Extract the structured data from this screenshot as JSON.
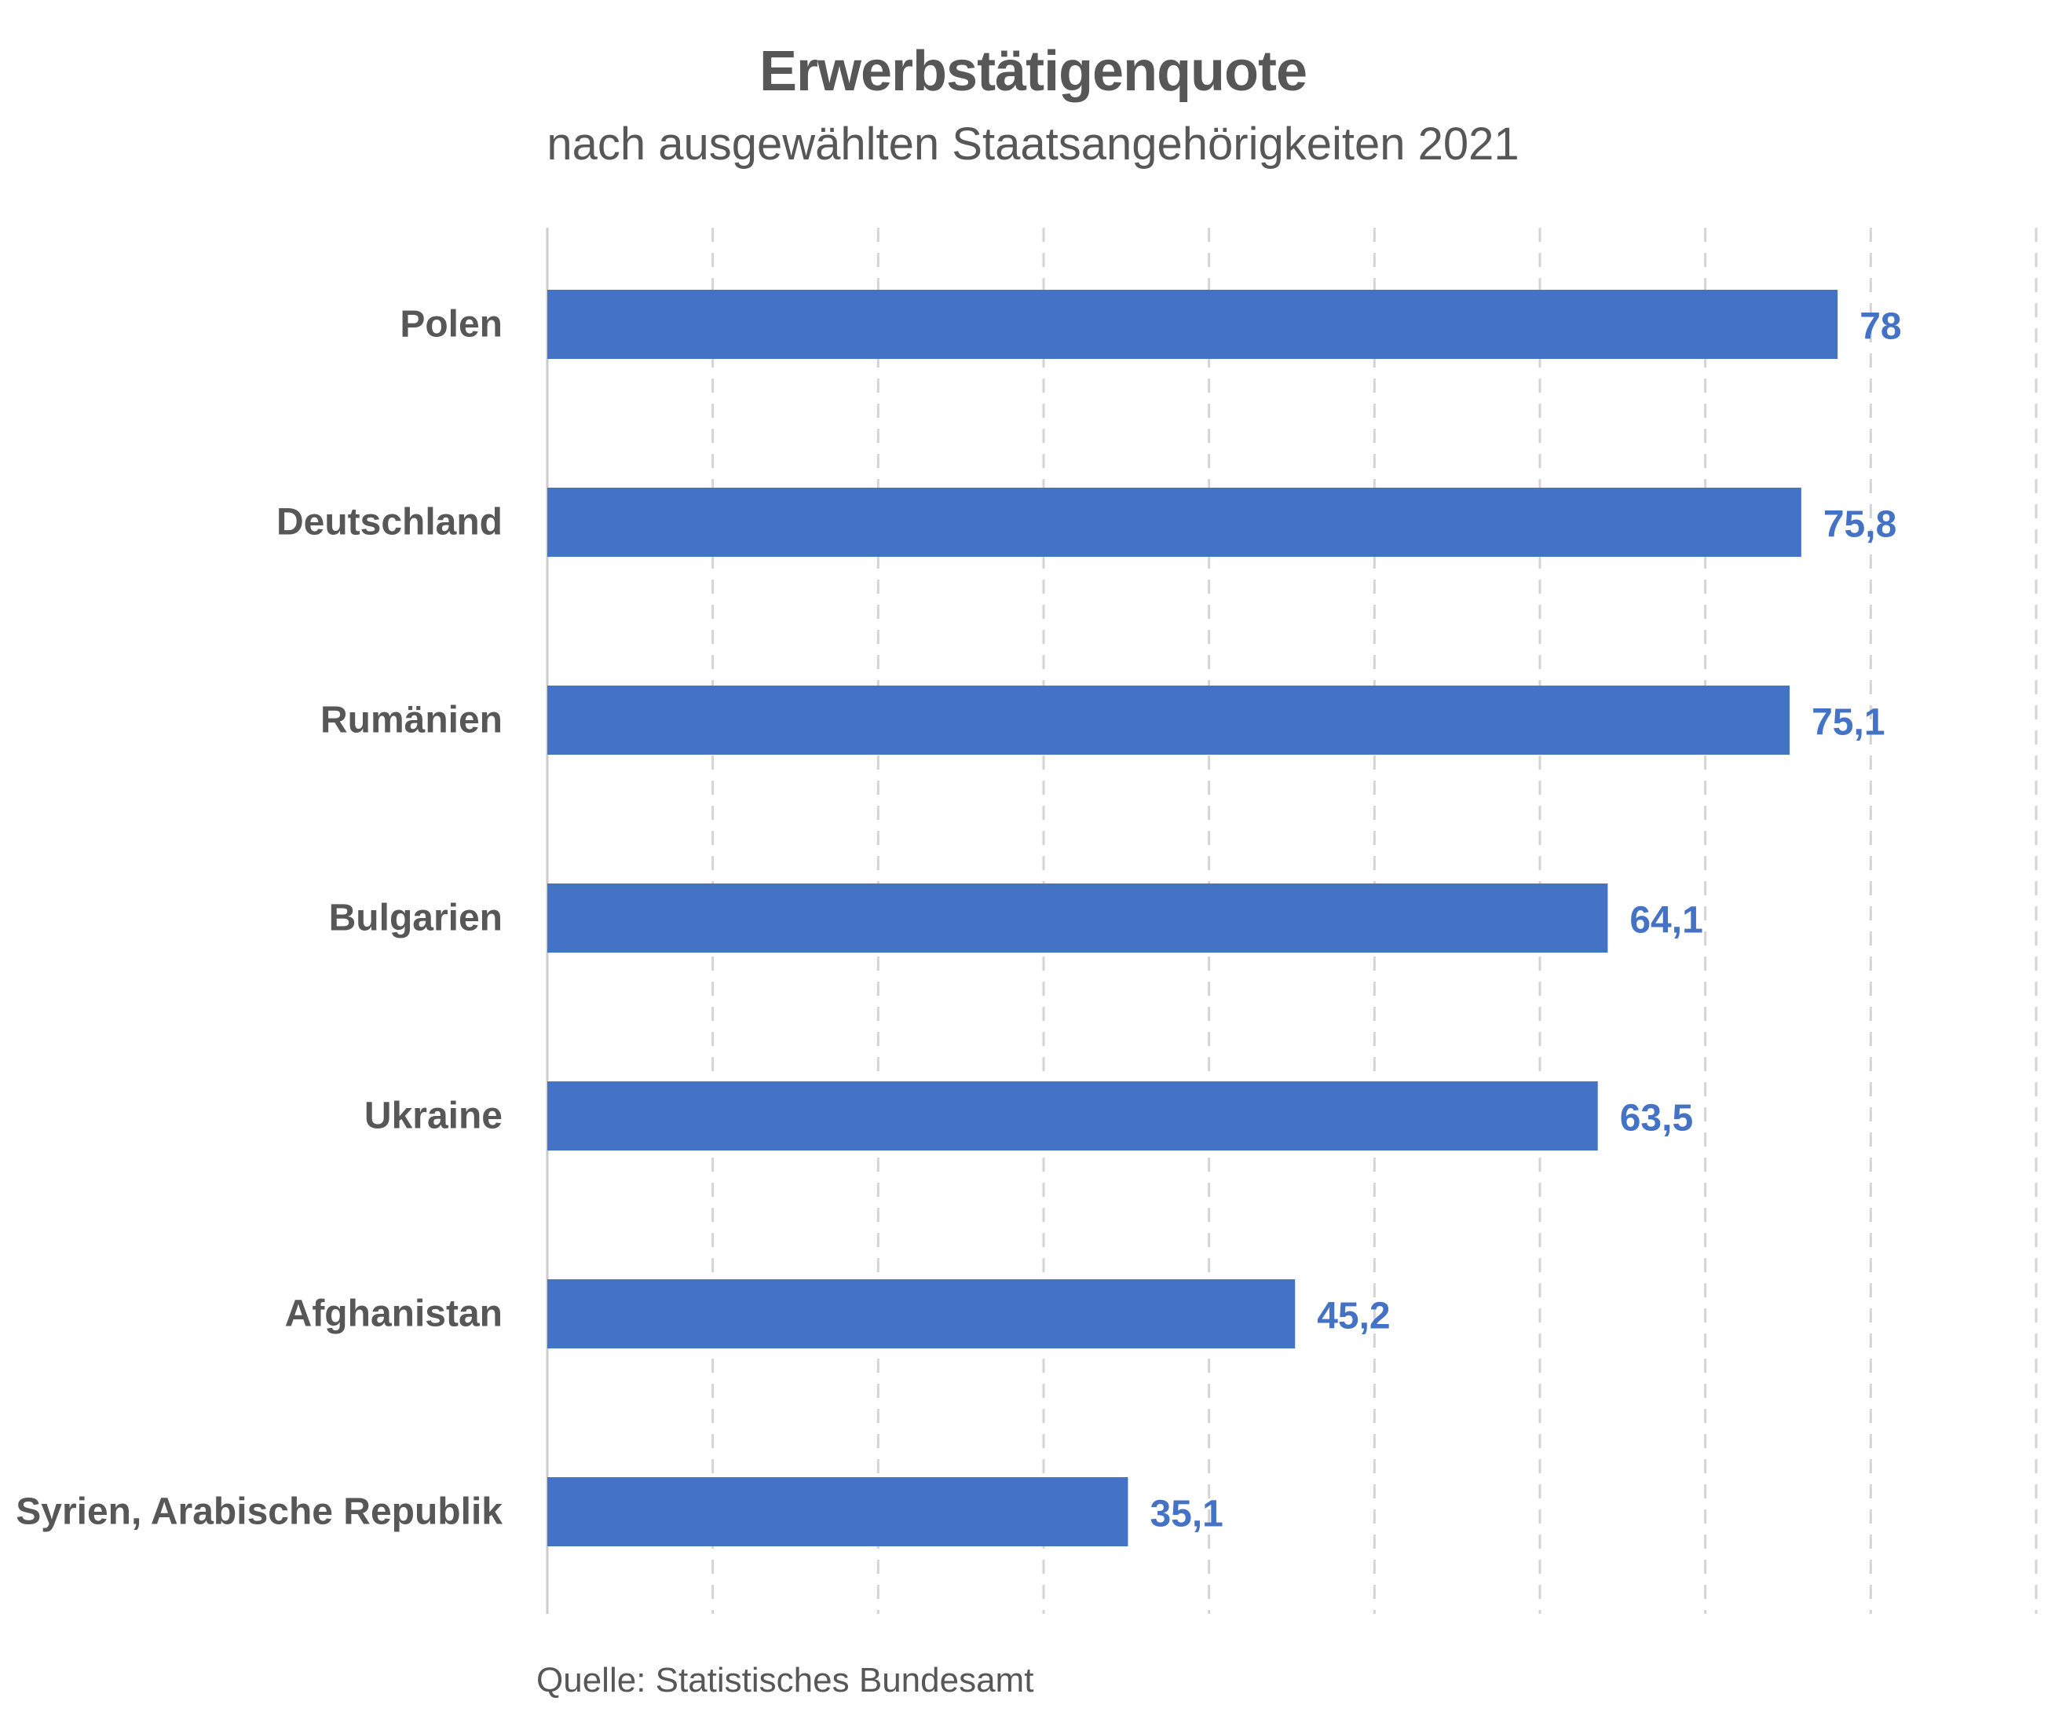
{
  "chart_data": {
    "type": "bar",
    "orientation": "horizontal",
    "title": "Erwerbstätigenquote",
    "subtitle": "nach ausgewählten Staatsangehörigkeiten 2021",
    "categories": [
      "Polen",
      "Deutschland",
      "Rumänien",
      "Bulgarien",
      "Ukraine",
      "Afghanistan",
      "Syrien, Arabische Republik"
    ],
    "values": [
      78,
      75.8,
      75.1,
      64.1,
      63.5,
      45.2,
      35.1
    ],
    "value_labels": [
      "78",
      "75,8",
      "75,1",
      "64,1",
      "63,5",
      "45,2",
      "35,1"
    ],
    "xlim": [
      0,
      90
    ],
    "grid": true,
    "legend": "none",
    "bar_color": "#4472c4",
    "label_color": "#4472c4",
    "source": "Quelle: Statistisches Bundesamt"
  }
}
